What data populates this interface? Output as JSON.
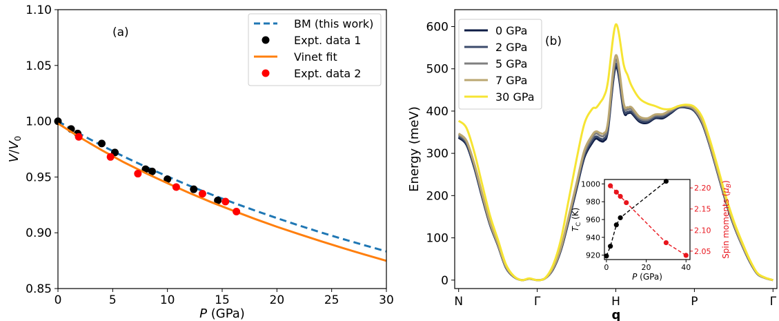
{
  "chart_data": [
    {
      "type": "line",
      "panel_label": "(a)",
      "xlabel_var": "P",
      "xlabel_unit": " (GPa)",
      "ylabel_var": "V",
      "ylabel_sub": "V",
      "ylabel_sub_index": "0",
      "xlim": [
        0,
        30
      ],
      "ylim": [
        0.85,
        1.1
      ],
      "xticks": [
        0,
        5,
        10,
        15,
        20,
        25,
        30
      ],
      "yticks": [
        "0.85",
        "0.90",
        "0.95",
        "1.00",
        "1.05",
        "1.10"
      ],
      "legend_position": "top-right",
      "series": [
        {
          "name": "BM (this work)",
          "kind": "line",
          "style": "dashed",
          "color": "#1f77b4",
          "x": [
            0,
            2,
            4,
            6,
            8,
            10,
            12,
            14,
            16,
            18,
            20,
            22,
            24,
            26,
            28,
            30
          ],
          "y": [
            1.0,
            0.9887,
            0.9782,
            0.9684,
            0.9592,
            0.9505,
            0.9422,
            0.9344,
            0.927,
            0.9199,
            0.9131,
            0.9066,
            0.9004,
            0.8945,
            0.8888,
            0.8833
          ]
        },
        {
          "name": "Expt. data 1",
          "kind": "scatter",
          "color": "#000000",
          "x": [
            0,
            1.2,
            1.8,
            4.0,
            5.2,
            8.0,
            8.6,
            10.0,
            12.4,
            14.6
          ],
          "y": [
            1.0,
            0.993,
            0.989,
            0.98,
            0.972,
            0.957,
            0.955,
            0.948,
            0.939,
            0.929
          ]
        },
        {
          "name": "Vinet fit",
          "kind": "line",
          "style": "solid",
          "color": "#ff7f0e",
          "x": [
            0,
            2,
            4,
            6,
            8,
            10,
            12,
            14,
            16,
            18,
            20,
            22,
            24,
            26,
            28,
            30
          ],
          "y": [
            0.998,
            0.9855,
            0.974,
            0.9633,
            0.9535,
            0.9444,
            0.9357,
            0.9275,
            0.9198,
            0.9124,
            0.9054,
            0.8988,
            0.8925,
            0.8864,
            0.8805,
            0.8749
          ]
        },
        {
          "name": "Expt. data 2",
          "kind": "scatter",
          "color": "#ff0000",
          "x": [
            1.9,
            4.8,
            7.3,
            10.8,
            13.2,
            15.3,
            16.3
          ],
          "y": [
            0.986,
            0.968,
            0.953,
            0.941,
            0.935,
            0.928,
            0.919
          ]
        }
      ]
    },
    {
      "type": "line",
      "panel_label": "(b)",
      "xlabel": "q",
      "ylabel": "Energy (meV)",
      "ylim": [
        -20,
        640
      ],
      "yticks": [
        0,
        100,
        200,
        300,
        400,
        500,
        600
      ],
      "categories": [
        "N",
        "Γ",
        "H",
        "P",
        "Γ"
      ],
      "category_positions": [
        0,
        1,
        2,
        3,
        4
      ],
      "legend_position": "top-left",
      "x": [
        0,
        0.1,
        0.2,
        0.3,
        0.4,
        0.5,
        0.6,
        0.7,
        0.8,
        0.9,
        1.0,
        1.1,
        1.2,
        1.3,
        1.4,
        1.5,
        1.6,
        1.7,
        1.75,
        1.8,
        1.85,
        1.9,
        2.0,
        2.1,
        2.15,
        2.2,
        2.3,
        2.4,
        2.5,
        2.6,
        2.7,
        2.8,
        2.9,
        3.0,
        3.1,
        3.2,
        3.3,
        3.4,
        3.5,
        3.6,
        3.7,
        3.8,
        3.9,
        4.0
      ],
      "series": [
        {
          "name": "0 GPa",
          "color": "#0e1c45",
          "y": [
            337,
            320,
            265,
            195,
            130,
            82,
            30,
            8,
            0,
            3,
            0,
            4,
            25,
            70,
            140,
            215,
            290,
            325,
            335,
            330,
            330,
            355,
            505,
            400,
            395,
            395,
            375,
            372,
            383,
            383,
            395,
            408,
            408,
            400,
            370,
            315,
            250,
            185,
            130,
            85,
            45,
            15,
            5,
            0
          ]
        },
        {
          "name": "2 GPa",
          "color": "#3b4a6b",
          "y": [
            340,
            323,
            268,
            198,
            132,
            83,
            31,
            8,
            0,
            3,
            0,
            4,
            26,
            72,
            143,
            219,
            295,
            330,
            340,
            335,
            335,
            360,
            512,
            405,
            398,
            398,
            378,
            375,
            385,
            386,
            397,
            409,
            409,
            401,
            372,
            317,
            252,
            187,
            131,
            86,
            46,
            15,
            5,
            0
          ]
        },
        {
          "name": "5 GPa",
          "color": "#7f7f7f",
          "y": [
            344,
            327,
            272,
            201,
            134,
            85,
            32,
            9,
            0,
            3,
            0,
            4,
            27,
            74,
            147,
            224,
            301,
            337,
            347,
            342,
            342,
            368,
            522,
            413,
            404,
            404,
            383,
            379,
            389,
            390,
            400,
            410,
            411,
            403,
            374,
            319,
            254,
            189,
            133,
            87,
            47,
            16,
            5,
            0
          ]
        },
        {
          "name": "7 GPa",
          "color": "#bba772",
          "y": [
            347,
            330,
            275,
            204,
            136,
            86,
            33,
            9,
            0,
            3,
            0,
            4,
            28,
            76,
            151,
            229,
            307,
            343,
            352,
            348,
            348,
            374,
            532,
            419,
            409,
            409,
            387,
            383,
            392,
            393,
            403,
            412,
            413,
            405,
            376,
            321,
            256,
            191,
            134,
            88,
            48,
            16,
            5,
            0
          ]
        },
        {
          "name": "30 GPa",
          "color": "#f6e433",
          "y": [
            377,
            360,
            302,
            226,
            152,
            96,
            38,
            10,
            0,
            4,
            0,
            5,
            35,
            95,
            190,
            285,
            370,
            405,
            408,
            420,
            435,
            470,
            605,
            510,
            485,
            460,
            430,
            418,
            412,
            405,
            405,
            412,
            415,
            410,
            385,
            330,
            265,
            198,
            140,
            93,
            50,
            17,
            6,
            0
          ]
        }
      ],
      "inset": {
        "xlabel_var": "P",
        "xlabel_unit": " (GPa)",
        "ylabel_left_var": "T",
        "ylabel_left_sub": "C",
        "ylabel_left_unit": " (K)",
        "ylabel_right_text": "Spin moments (",
        "ylabel_right_var": "μ",
        "ylabel_right_sub": "B",
        "ylabel_right_close": ")",
        "xlim": [
          -1,
          42
        ],
        "ylim_left": [
          915,
          1005
        ],
        "ylim_right": [
          2.03,
          2.22
        ],
        "xticks": [
          0,
          20,
          40
        ],
        "yticks_left": [
          920,
          940,
          960,
          980,
          1000
        ],
        "yticks_right": [
          "2.05",
          "2.10",
          "2.15",
          "2.20"
        ],
        "tc_color": "#000000",
        "spin_color": "#e8141c",
        "tc_series": {
          "x": [
            0,
            2,
            5,
            7,
            30
          ],
          "y": [
            919,
            930,
            954,
            962,
            1003
          ]
        },
        "spin_series": {
          "x": [
            2,
            5,
            7,
            10,
            30,
            40
          ],
          "y": [
            2.205,
            2.19,
            2.18,
            2.165,
            2.07,
            2.04
          ]
        }
      }
    }
  ]
}
